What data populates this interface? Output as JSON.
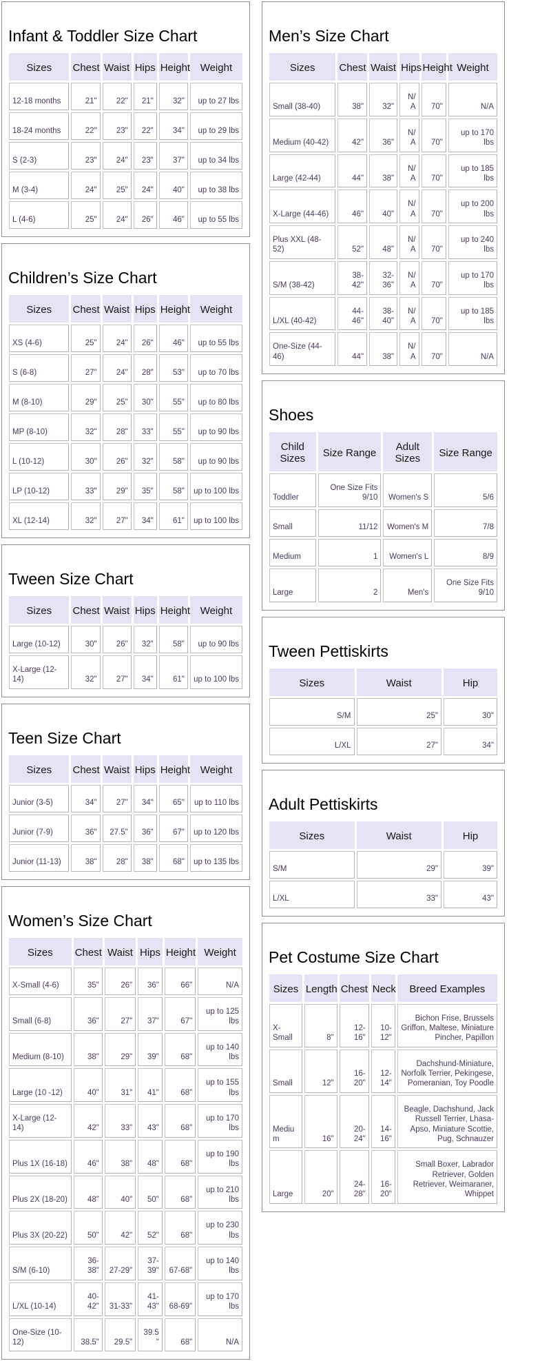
{
  "colors": {
    "header_bg": "#e8e2f6",
    "cell_text": "#4a3a60",
    "title_color": "#000000"
  },
  "charts": {
    "infant_toddler": {
      "title": "Infant & Toddler Size Chart",
      "headers": [
        "Sizes",
        "Chest",
        "Waist",
        "Hips",
        "Height",
        "Weight"
      ],
      "rows": [
        [
          "12-18 months",
          "21\"",
          "22\"",
          "21\"",
          "32\"",
          "up to 27 lbs"
        ],
        [
          "18-24 months",
          "22\"",
          "23\"",
          "22\"",
          "34\"",
          "up to 29 lbs"
        ],
        [
          "S (2-3)",
          "23\"",
          "24\"",
          "23\"",
          "37\"",
          "up to 34 lbs"
        ],
        [
          "M (3-4)",
          "24\"",
          "25\"",
          "24\"",
          "40\"",
          "up to 38 lbs"
        ],
        [
          "L (4-6)",
          "25\"",
          "24\"",
          "26\"",
          "46\"",
          "up to 55 lbs"
        ]
      ]
    },
    "childrens": {
      "title": "Children’s Size Chart",
      "headers": [
        "Sizes",
        "Chest",
        "Waist",
        "Hips",
        "Height",
        "Weight"
      ],
      "rows": [
        [
          "XS (4-6)",
          "25\"",
          "24\"",
          "26\"",
          "46\"",
          "up to 55 lbs"
        ],
        [
          "S (6-8)",
          "27\"",
          "24\"",
          "28\"",
          "53\"",
          "up to 70 lbs"
        ],
        [
          "M (8-10)",
          "29\"",
          "25\"",
          "30\"",
          "55\"",
          "up to 80 lbs"
        ],
        [
          "MP (8-10)",
          "32\"",
          "28\"",
          "33\"",
          "55\"",
          "up to 90 lbs"
        ],
        [
          "L (10-12)",
          "30\"",
          "26\"",
          "32\"",
          "58\"",
          "up to 90 lbs"
        ],
        [
          "LP (10-12)",
          "33\"",
          "29\"",
          "35\"",
          "58\"",
          "up to 100 lbs"
        ],
        [
          "XL (12-14)",
          "32\"",
          "27\"",
          "34\"",
          "61\"",
          "up to 100 lbs"
        ]
      ]
    },
    "tween": {
      "title": "Tween Size Chart",
      "headers": [
        "Sizes",
        "Chest",
        "Waist",
        "Hips",
        "Height",
        "Weight"
      ],
      "rows": [
        [
          "Large (10-12)",
          "30\"",
          "26\"",
          "32\"",
          "58\"",
          "up to 90 lbs"
        ],
        [
          "X-Large (12-14)",
          "32\"",
          "27\"",
          "34\"",
          "61\"",
          "up to 100 lbs"
        ]
      ]
    },
    "teen": {
      "title": "Teen Size Chart",
      "headers": [
        "Sizes",
        "Chest",
        "Waist",
        "Hips",
        "Height",
        "Weight"
      ],
      "rows": [
        [
          "Junior (3-5)",
          "34\"",
          "27\"",
          "34\"",
          "65\"",
          "up to 110 lbs"
        ],
        [
          "Junior (7-9)",
          "36\"",
          "27.5\"",
          "36\"",
          "67\"",
          "up to 120 lbs"
        ],
        [
          "Junior (11-13)",
          "38\"",
          "28\"",
          "38\"",
          "68\"",
          "up to 135 lbs"
        ]
      ]
    },
    "womens": {
      "title": "Women’s Size Chart",
      "headers": [
        "Sizes",
        "Chest",
        "Waist",
        "Hips",
        "Height",
        "Weight"
      ],
      "rows": [
        [
          "X-Small (4-6)",
          "35\"",
          "26\"",
          "36\"",
          "66\"",
          "N/A"
        ],
        [
          "Small (6-8)",
          "36\"",
          "27\"",
          "37\"",
          "67\"",
          "up to 125 lbs"
        ],
        [
          "Medium (8-10)",
          "38\"",
          "29\"",
          "39\"",
          "68\"",
          "up to 140 lbs"
        ],
        [
          "Large (10 -12)",
          "40\"",
          "31\"",
          "41\"",
          "68\"",
          "up to 155 lbs"
        ],
        [
          "X-Large (12-14)",
          "42\"",
          "33\"",
          "43\"",
          "68\"",
          "up to 170 lbs"
        ],
        [
          "Plus 1X (16-18)",
          "46\"",
          "38\"",
          "48\"",
          "68\"",
          "up to 190 lbs"
        ],
        [
          "Plus 2X (18-20)",
          "48\"",
          "40\"",
          "50\"",
          "68\"",
          "up to 210 lbs"
        ],
        [
          "Plus 3X (20-22)",
          "50\"",
          "42\"",
          "52\"",
          "68\"",
          "up to 230 lbs"
        ],
        [
          "S/M (6-10)",
          "36-38\"",
          "27-29\"",
          "37-39\"",
          "67-68\"",
          "up to 140 lbs"
        ],
        [
          "L/XL (10-14)",
          "40-42\"",
          "31-33\"",
          "41-43\"",
          "68-69\"",
          "up to 170 lbs"
        ],
        [
          "One-Size (10-12)",
          "38.5\"",
          "29.5\"",
          "39.5\"",
          "68\"",
          "N/A"
        ]
      ]
    },
    "mens": {
      "title": "Men’s Size Chart",
      "headers": [
        "Sizes",
        "Chest",
        "Waist",
        "Hips",
        "Height",
        "Weight"
      ],
      "rows": [
        [
          "Small (38-40)",
          "38\"",
          "32\"",
          "N/A",
          "70\"",
          "N/A"
        ],
        [
          "Medium (40-42)",
          "42\"",
          "36\"",
          "N/A",
          "70\"",
          "up to 170 lbs"
        ],
        [
          "Large (42-44)",
          "44\"",
          "38\"",
          "N/A",
          "70\"",
          "up to 185 lbs"
        ],
        [
          "X-Large (44-46)",
          "46\"",
          "40\"",
          "N/A",
          "70\"",
          "up to 200 lbs"
        ],
        [
          "Plus XXL (48-52)",
          "52\"",
          "48\"",
          "N/A",
          "70\"",
          "up to 240 lbs"
        ],
        [
          "S/M (38-42)",
          "38-42\"",
          "32-36\"",
          "N/A",
          "70\"",
          "up to 170 lbs"
        ],
        [
          "L/XL (40-42)",
          "44-46\"",
          "38-40\"",
          "N/A",
          "70\"",
          "up to 185 lbs"
        ],
        [
          "One-Size (44-46)",
          "44\"",
          "38\"",
          "N/A",
          "70\"",
          "N/A"
        ]
      ]
    },
    "shoes": {
      "title": "Shoes",
      "headers": [
        "Child Sizes",
        "Size Range",
        "Adult Sizes",
        "Size Range"
      ],
      "rows": [
        [
          "Toddler",
          "One Size Fits 9/10",
          "Women's S",
          "5/6"
        ],
        [
          "Small",
          "11/12",
          "Women's M",
          "7/8"
        ],
        [
          "Medium",
          "1",
          "Women's L",
          "8/9"
        ],
        [
          "Large",
          "2",
          "Men's",
          "One Size Fits 9/10"
        ]
      ]
    },
    "tween_pettiskirts": {
      "title": "Tween Pettiskirts",
      "headers": [
        "Sizes",
        "Waist",
        "Hip"
      ],
      "rows": [
        [
          "S/M",
          "25\"",
          "30\""
        ],
        [
          "L/XL",
          "27\"",
          "34\""
        ]
      ]
    },
    "adult_pettiskirts": {
      "title": "Adult Pettiskirts",
      "headers": [
        "Sizes",
        "Waist",
        "Hip"
      ],
      "rows": [
        [
          "S/M",
          "29\"",
          "39\""
        ],
        [
          "L/XL",
          "33\"",
          "43\""
        ]
      ]
    },
    "pet_costume": {
      "title": "Pet Costume Size Chart",
      "headers": [
        "Sizes",
        "Length",
        "Chest",
        "Neck",
        "Breed Examples"
      ],
      "rows": [
        [
          "X-Small",
          "8\"",
          "12-16\"",
          "10-12\"",
          "Bichon Frise, Brussels Griffon, Maltese, Miniature Pincher, Papillon"
        ],
        [
          "Small",
          "12\"",
          "16-20\"",
          "12-14\"",
          "Dachshund-Miniature, Norfolk Terrier, Pekingese, Pomeranian, Toy Poodle"
        ],
        [
          "Medium",
          "16\"",
          "20-24\"",
          "14-16\"",
          "Beagle, Dachshund, Jack Russell Terrier, Lhasa-Apso, Miniature Scottie, Pug, Schnauzer"
        ],
        [
          "Large",
          "20\"",
          "24-28\"",
          "16-20\"",
          "Small Boxer, Labrador Retriever, Golden Retriever, Weimaraner, Whippet"
        ]
      ]
    }
  }
}
